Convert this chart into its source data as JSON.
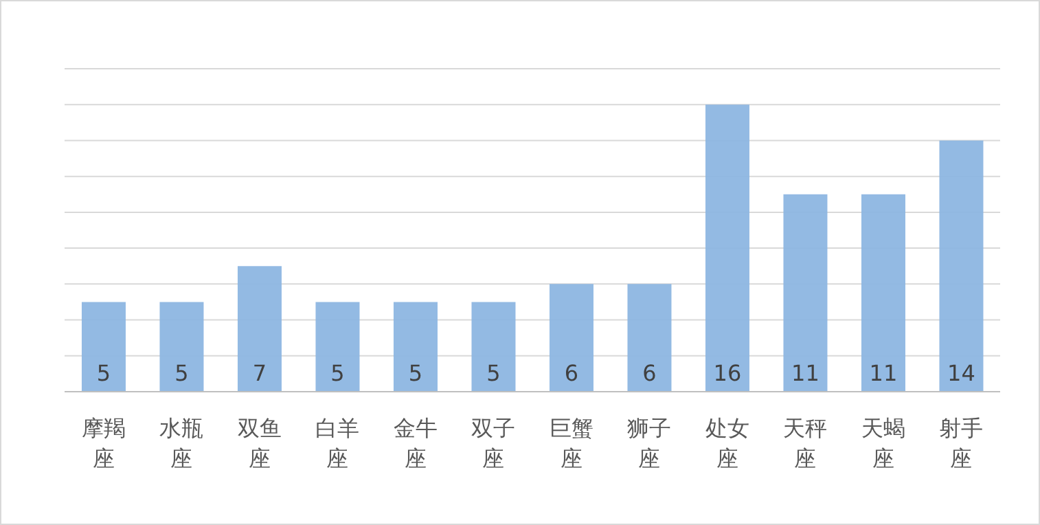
{
  "chart_data": {
    "type": "bar",
    "categories": [
      "摩羯座",
      "水瓶座",
      "双鱼座",
      "白羊座",
      "金牛座",
      "双子座",
      "巨蟹座",
      "狮子座",
      "处女座",
      "天秤座",
      "天蝎座",
      "射手座"
    ],
    "values": [
      5,
      5,
      7,
      5,
      5,
      5,
      6,
      6,
      16,
      11,
      11,
      14
    ],
    "color": "#8db6e2",
    "grid": "y",
    "tick_labels": "x",
    "data_labels": true
  }
}
